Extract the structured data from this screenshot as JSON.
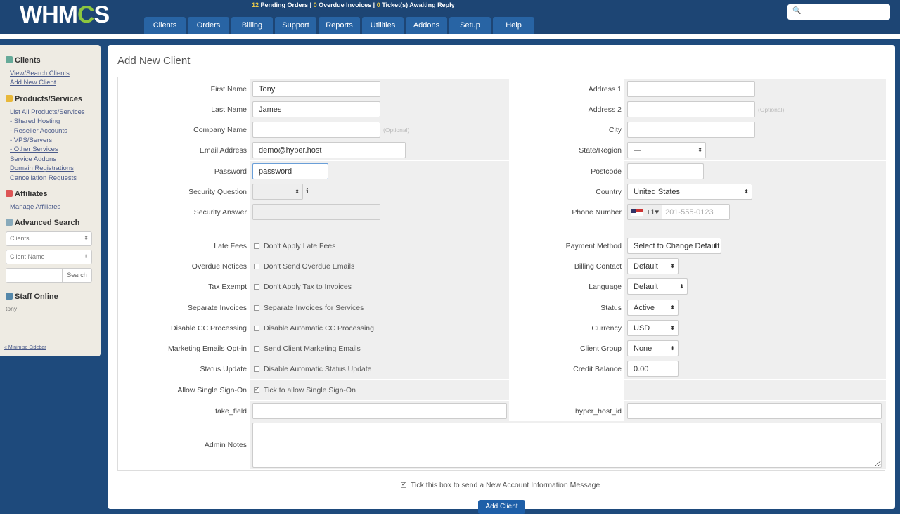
{
  "header": {
    "logo": "WHMCS",
    "stats": {
      "pending_orders": "12",
      "pending_label": "Pending Orders",
      "overdue": "0",
      "overdue_label": "Overdue Invoices",
      "tickets": "0",
      "tickets_label": "Ticket(s) Awaiting Reply"
    },
    "nav": [
      "Clients",
      "Orders",
      "Billing",
      "Support",
      "Reports",
      "Utilities",
      "Addons",
      "Setup",
      "Help"
    ],
    "search_placeholder": ""
  },
  "sidebar": {
    "clients": {
      "title": "Clients",
      "links": [
        "View/Search Clients",
        "Add New Client"
      ]
    },
    "products": {
      "title": "Products/Services",
      "links": [
        "List All Products/Services",
        "- Shared Hosting",
        "- Reseller Accounts",
        "- VPS/Servers",
        "- Other Services",
        "Service Addons",
        "Domain Registrations",
        "Cancellation Requests"
      ]
    },
    "affiliates": {
      "title": "Affiliates",
      "links": [
        "Manage Affiliates"
      ]
    },
    "advanced_search": {
      "title": "Advanced Search",
      "select1": "Clients",
      "select2": "Client Name",
      "button": "Search"
    },
    "staff": {
      "title": "Staff Online",
      "user": "tony"
    },
    "minimise": "« Minimise Sidebar"
  },
  "page": {
    "title": "Add New Client",
    "optional": "(Optional)",
    "left": {
      "first_name": {
        "label": "First Name",
        "value": "Tony"
      },
      "last_name": {
        "label": "Last Name",
        "value": "James"
      },
      "company": {
        "label": "Company Name",
        "value": ""
      },
      "email": {
        "label": "Email Address",
        "value": "demo@hyper.host"
      },
      "password": {
        "label": "Password",
        "value": "password"
      },
      "security_question": {
        "label": "Security Question"
      },
      "security_answer": {
        "label": "Security Answer"
      },
      "late_fees": {
        "label": "Late Fees",
        "text": "Don't Apply Late Fees",
        "checked": false
      },
      "overdue": {
        "label": "Overdue Notices",
        "text": "Don't Send Overdue Emails",
        "checked": false
      },
      "tax": {
        "label": "Tax Exempt",
        "text": "Don't Apply Tax to Invoices",
        "checked": false
      },
      "separate": {
        "label": "Separate Invoices",
        "text": "Separate Invoices for Services",
        "checked": false
      },
      "cc": {
        "label": "Disable CC Processing",
        "text": "Disable Automatic CC Processing",
        "checked": false
      },
      "marketing": {
        "label": "Marketing Emails Opt-in",
        "text": "Send Client Marketing Emails",
        "checked": false
      },
      "status_update": {
        "label": "Status Update",
        "text": "Disable Automatic Status Update",
        "checked": false
      },
      "sso": {
        "label": "Allow Single Sign-On",
        "text": "Tick to allow Single Sign-On",
        "checked": true
      },
      "fake_field": {
        "label": "fake_field",
        "value": ""
      }
    },
    "right": {
      "address1": {
        "label": "Address 1",
        "value": ""
      },
      "address2": {
        "label": "Address 2",
        "value": ""
      },
      "city": {
        "label": "City",
        "value": ""
      },
      "state": {
        "label": "State/Region",
        "value": "—"
      },
      "postcode": {
        "label": "Postcode",
        "value": ""
      },
      "country": {
        "label": "Country",
        "value": "United States"
      },
      "phone": {
        "label": "Phone Number",
        "code": "+1",
        "placeholder": "201-555-0123"
      },
      "payment": {
        "label": "Payment Method",
        "value": "Select to Change Default"
      },
      "billing_contact": {
        "label": "Billing Contact",
        "value": "Default"
      },
      "language": {
        "label": "Language",
        "value": "Default"
      },
      "status": {
        "label": "Status",
        "value": "Active"
      },
      "currency": {
        "label": "Currency",
        "value": "USD"
      },
      "group": {
        "label": "Client Group",
        "value": "None"
      },
      "credit": {
        "label": "Credit Balance",
        "value": "0.00"
      },
      "hyper_host_id": {
        "label": "hyper_host_id",
        "value": ""
      }
    },
    "admin_notes": {
      "label": "Admin Notes",
      "value": ""
    },
    "send_message": {
      "text": "Tick this box to send a New Account Information Message",
      "checked": true
    },
    "submit": "Add Client"
  }
}
